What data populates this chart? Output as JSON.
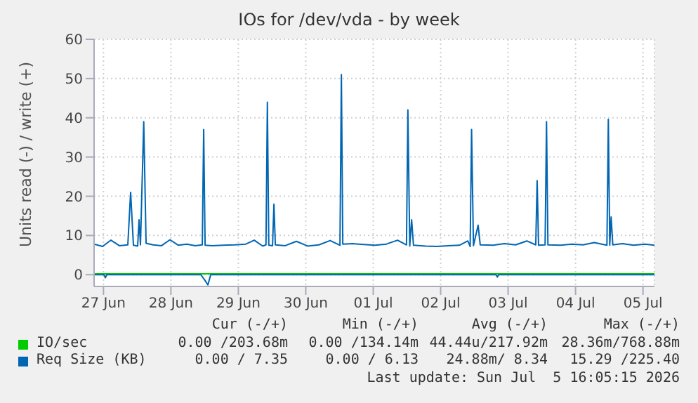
{
  "chart_data": {
    "type": "line",
    "title": "IOs for /dev/vda - by week",
    "ylabel": "Units read (-) / write (+)",
    "xlim": [
      "2026-06-27T08:40",
      "2026-07-05T16:05"
    ],
    "xticks": [
      {
        "value": "2026-06-27T12:00",
        "label": "27 Jun"
      },
      {
        "value": "2026-06-28T12:00",
        "label": "28 Jun"
      },
      {
        "value": "2026-06-29T12:00",
        "label": "29 Jun"
      },
      {
        "value": "2026-06-30T12:00",
        "label": "30 Jun"
      },
      {
        "value": "2026-07-01T12:00",
        "label": "01 Jul"
      },
      {
        "value": "2026-07-02T12:00",
        "label": "02 Jul"
      },
      {
        "value": "2026-07-03T12:00",
        "label": "03 Jul"
      },
      {
        "value": "2026-07-04T12:00",
        "label": "04 Jul"
      },
      {
        "value": "2026-07-05T12:00",
        "label": "05 Jul"
      }
    ],
    "ylim": [
      -3,
      60
    ],
    "yticks": [
      0,
      10,
      20,
      30,
      40,
      50,
      60
    ],
    "grid": true,
    "legend": "bottom",
    "marker": "none",
    "line_style": "solid",
    "series": [
      {
        "name": "IO/sec",
        "color": "#00cc00",
        "x": [
          "2026-06-27T08:40",
          "2026-07-05T16:05"
        ],
        "values": [
          0.2,
          0.2
        ]
      },
      {
        "name": "Req Size (KB)",
        "color": "#0066b3",
        "x": [
          "2026-06-27T08:40",
          "2026-06-27T11:40",
          "2026-06-27T14:40",
          "2026-06-27T17:40",
          "2026-06-27T20:40",
          "2026-06-27T21:40",
          "2026-06-27T22:40",
          "2026-06-28T00:10",
          "2026-06-28T00:40",
          "2026-06-28T01:10",
          "2026-06-28T02:20",
          "2026-06-28T03:10",
          "2026-06-28T05:40",
          "2026-06-28T08:40",
          "2026-06-28T11:40",
          "2026-06-28T14:40",
          "2026-06-28T17:40",
          "2026-06-28T20:40",
          "2026-06-28T23:10",
          "2026-06-28T23:40",
          "2026-06-29T00:10",
          "2026-06-29T02:40",
          "2026-06-29T06:40",
          "2026-06-29T10:40",
          "2026-06-29T14:40",
          "2026-06-29T17:40",
          "2026-06-29T20:40",
          "2026-06-29T21:50",
          "2026-06-29T22:20",
          "2026-06-29T22:50",
          "2026-06-30T00:10",
          "2026-06-30T00:40",
          "2026-06-30T01:10",
          "2026-06-30T04:40",
          "2026-06-30T08:40",
          "2026-06-30T12:40",
          "2026-06-30T16:40",
          "2026-06-30T20:40",
          "2026-07-01T00:10",
          "2026-07-01T00:40",
          "2026-07-01T01:10",
          "2026-07-01T04:40",
          "2026-07-01T08:40",
          "2026-07-01T12:40",
          "2026-07-01T16:40",
          "2026-07-01T20:40",
          "2026-07-01T23:50",
          "2026-07-02T00:20",
          "2026-07-02T01:00",
          "2026-07-02T01:40",
          "2026-07-02T02:20",
          "2026-07-02T06:40",
          "2026-07-02T10:40",
          "2026-07-02T14:40",
          "2026-07-02T18:40",
          "2026-07-02T21:40",
          "2026-07-02T22:30",
          "2026-07-02T23:00",
          "2026-07-02T23:40",
          "2026-07-03T01:20",
          "2026-07-03T02:05",
          "2026-07-03T06:40",
          "2026-07-03T10:40",
          "2026-07-03T14:40",
          "2026-07-03T18:40",
          "2026-07-03T21:50",
          "2026-07-03T22:20",
          "2026-07-03T22:50",
          "2026-07-04T01:10",
          "2026-07-04T01:40",
          "2026-07-04T02:10",
          "2026-07-04T06:40",
          "2026-07-04T10:40",
          "2026-07-04T14:40",
          "2026-07-04T18:40",
          "2026-07-04T23:10",
          "2026-07-04T23:40",
          "2026-07-05T00:10",
          "2026-07-05T00:40",
          "2026-07-05T01:15",
          "2026-07-05T04:40",
          "2026-07-05T08:40",
          "2026-07-05T12:40",
          "2026-07-05T16:05"
        ],
        "values": [
          7.8,
          7.2,
          8.8,
          7.4,
          7.6,
          21,
          7.5,
          7.3,
          14,
          7.6,
          39,
          8,
          7.6,
          7.4,
          8.9,
          7.5,
          7.8,
          7.4,
          7.6,
          37,
          7.5,
          7.4,
          7.5,
          7.6,
          7.8,
          8.8,
          7.3,
          7.6,
          44,
          7.5,
          7.4,
          18,
          7.6,
          7.4,
          8.5,
          7.3,
          7.6,
          8.7,
          7.5,
          51,
          7.8,
          7.9,
          7.7,
          7.5,
          7.8,
          8.8,
          7.6,
          42,
          7.3,
          14,
          7.5,
          7.3,
          7.2,
          7.4,
          7.5,
          8.6,
          7.2,
          37,
          7.4,
          12.6,
          7.6,
          7.5,
          7.9,
          7.6,
          8.6,
          7.6,
          24,
          7.5,
          7.6,
          39,
          7.6,
          7.5,
          7.8,
          7.6,
          8.2,
          7.5,
          39.6,
          7.5,
          14.7,
          7.6,
          7.9,
          7.5,
          7.8,
          7.5
        ]
      },
      {
        "color": "#0066b3",
        "x": [
          "2026-06-27T08:40",
          "2026-06-27T12:10",
          "2026-06-27T12:40",
          "2026-06-27T13:10",
          "2026-06-28T22:40",
          "2026-06-29T00:10",
          "2026-06-29T01:10",
          "2026-06-29T02:10",
          "2026-07-03T07:40",
          "2026-07-03T08:10",
          "2026-07-03T08:40",
          "2026-07-05T16:05"
        ],
        "values": [
          0,
          0,
          -0.8,
          0,
          0,
          -1.5,
          -2.6,
          0,
          0,
          -0.6,
          0,
          0
        ]
      }
    ],
    "annotations": [
      "Cur (-/+)",
      "Min (-/+)",
      "Avg (-/+)",
      "Max (-/+)",
      "0.00 /203.68m",
      "0.00 /134.14m",
      "44.44u/217.92m",
      "28.36m/768.88m",
      "0.00 / 7.35",
      "0.00 / 6.13",
      "24.88m/ 8.34",
      "15.29 /225.40",
      "Last update: Sun Jul  5 16:05:15 2026"
    ]
  }
}
